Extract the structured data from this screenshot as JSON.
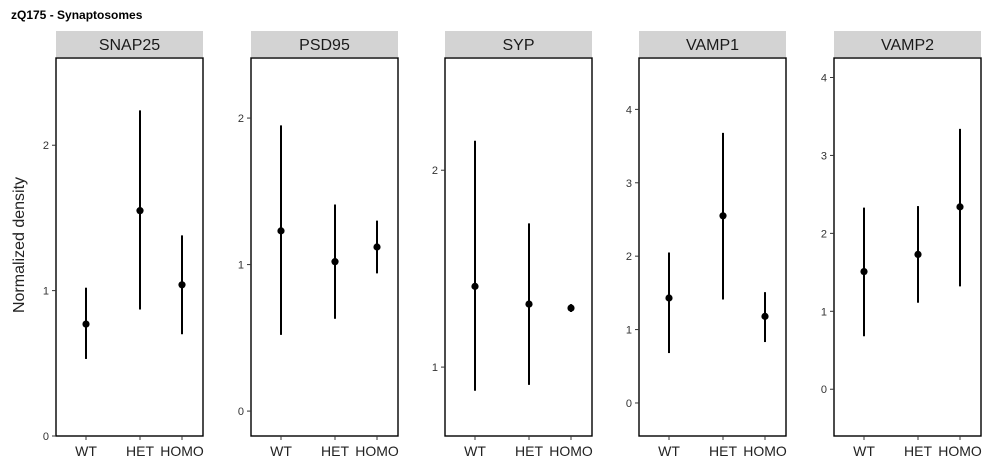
{
  "chart_data": {
    "type": "pointrange",
    "title": "zQ175 - Synaptosomes",
    "ylabel": "Normalized density",
    "categories": [
      "WT",
      "HET",
      "HOMO"
    ],
    "grid": false,
    "panels": [
      {
        "name": "SNAP25",
        "ylim": [
          0,
          2.6
        ],
        "yticks": [
          0,
          1,
          2
        ],
        "values": [
          0.77,
          1.55,
          1.04
        ],
        "lower": [
          0.53,
          0.87,
          0.7
        ],
        "upper": [
          1.02,
          2.24,
          1.38
        ]
      },
      {
        "name": "PSD95",
        "ylim": [
          -0.17,
          2.41
        ],
        "yticks": [
          0,
          1,
          2
        ],
        "values": [
          1.23,
          1.02,
          1.12
        ],
        "lower": [
          0.52,
          0.63,
          0.94
        ],
        "upper": [
          1.95,
          1.41,
          1.3
        ]
      },
      {
        "name": "SYP",
        "ylim": [
          0.65,
          2.57
        ],
        "yticks": [
          1,
          2
        ],
        "values": [
          1.41,
          1.32,
          1.3
        ],
        "lower": [
          0.88,
          0.91,
          1.28
        ],
        "upper": [
          2.15,
          1.73,
          1.32
        ]
      },
      {
        "name": "VAMP1",
        "ylim": [
          -0.45,
          4.7
        ],
        "yticks": [
          0,
          1,
          2,
          3,
          4
        ],
        "values": [
          1.43,
          2.55,
          1.18
        ],
        "lower": [
          0.68,
          1.41,
          0.83
        ],
        "upper": [
          2.05,
          3.68,
          1.51
        ]
      },
      {
        "name": "VAMP2",
        "ylim": [
          -0.6,
          4.25
        ],
        "yticks": [
          0,
          1,
          2,
          3,
          4
        ],
        "values": [
          1.51,
          1.73,
          2.34
        ],
        "lower": [
          0.68,
          1.11,
          1.32
        ],
        "upper": [
          2.33,
          2.35,
          3.34
        ]
      }
    ]
  }
}
